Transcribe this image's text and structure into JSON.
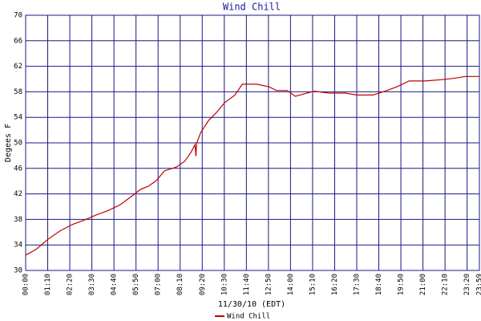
{
  "chart_data": {
    "type": "line",
    "title": "Wind Chill",
    "ylabel": "Degees F",
    "xlabel": "11/30/10 (EDT)",
    "grid": true,
    "grid_color": "#1a1a80",
    "legend": "bottom",
    "xlim": [
      0,
      1439
    ],
    "ylim": [
      30,
      70
    ],
    "yticks": [
      30,
      34,
      38,
      42,
      46,
      50,
      54,
      58,
      62,
      66,
      70
    ],
    "xticks": [
      {
        "value": 0,
        "label": "00:00"
      },
      {
        "value": 70,
        "label": "01:10"
      },
      {
        "value": 140,
        "label": "02:20"
      },
      {
        "value": 210,
        "label": "03:30"
      },
      {
        "value": 280,
        "label": "04:40"
      },
      {
        "value": 350,
        "label": "05:50"
      },
      {
        "value": 420,
        "label": "07:00"
      },
      {
        "value": 490,
        "label": "08:10"
      },
      {
        "value": 560,
        "label": "09:20"
      },
      {
        "value": 630,
        "label": "10:30"
      },
      {
        "value": 700,
        "label": "11:40"
      },
      {
        "value": 770,
        "label": "12:50"
      },
      {
        "value": 840,
        "label": "14:00"
      },
      {
        "value": 910,
        "label": "15:10"
      },
      {
        "value": 980,
        "label": "16:20"
      },
      {
        "value": 1050,
        "label": "17:30"
      },
      {
        "value": 1120,
        "label": "18:40"
      },
      {
        "value": 1190,
        "label": "19:50"
      },
      {
        "value": 1260,
        "label": "21:00"
      },
      {
        "value": 1330,
        "label": "22:10"
      },
      {
        "value": 1400,
        "label": "23:20"
      },
      {
        "value": 1439,
        "label": "23:59"
      }
    ],
    "x": [
      0,
      33,
      71,
      109,
      148,
      186,
      224,
      262,
      300,
      338,
      364,
      389,
      415,
      440,
      478,
      504,
      524,
      537,
      540,
      542,
      555,
      580,
      606,
      631,
      664,
      687,
      733,
      771,
      796,
      830,
      855,
      885,
      916,
      962,
      1013,
      1051,
      1102,
      1140,
      1178,
      1216,
      1267,
      1318,
      1356,
      1394,
      1439
    ],
    "series": [
      {
        "name": "Wind Chill",
        "color": "#c00000",
        "values": [
          32.4,
          33.3,
          34.9,
          36.2,
          37.2,
          37.9,
          38.7,
          39.4,
          40.3,
          41.7,
          42.7,
          43.2,
          44.1,
          45.6,
          46.2,
          47.1,
          48.5,
          49.7,
          47.9,
          49.9,
          51.6,
          53.5,
          54.8,
          56.3,
          57.5,
          59.2,
          59.2,
          58.8,
          58.2,
          58.2,
          57.3,
          57.7,
          58.1,
          57.8,
          57.8,
          57.5,
          57.5,
          58.1,
          58.8,
          59.7,
          59.7,
          59.9,
          60.1,
          60.4,
          60.4
        ]
      }
    ]
  }
}
